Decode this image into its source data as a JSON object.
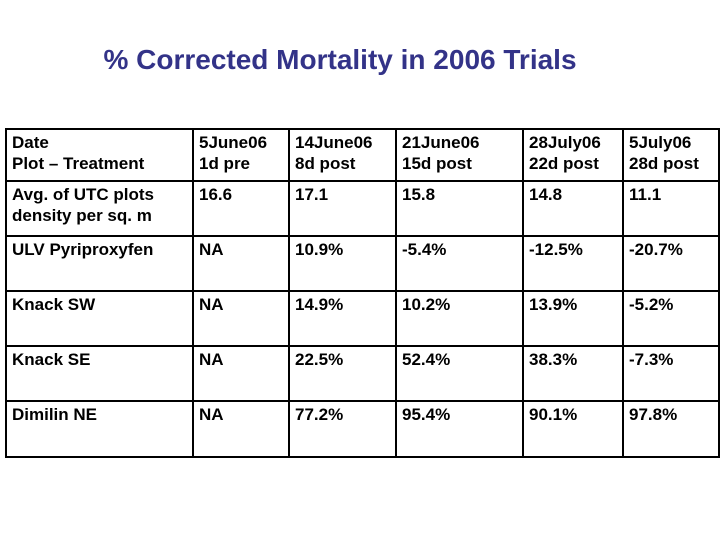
{
  "slide": {
    "title": "% Corrected Mortality in 2006 Trials",
    "title_color": "#333388"
  },
  "table": {
    "header": [
      "Date\nPlot – Treatment",
      "5June06\n1d pre",
      "14June06\n8d post",
      "21June06\n15d post",
      "28July06\n22d post",
      "5July06\n28d post"
    ],
    "rows": [
      {
        "label": "Avg. of UTC plots\ndensity per sq. m",
        "values": [
          "16.6",
          "17.1",
          "15.8",
          "14.8",
          "11.1"
        ]
      },
      {
        "label": "ULV Pyriproxyfen",
        "values": [
          "NA",
          "10.9%",
          "-5.4%",
          "-12.5%",
          "-20.7%"
        ]
      },
      {
        "label": "Knack SW",
        "values": [
          "NA",
          "14.9%",
          "10.2%",
          "13.9%",
          "-5.2%"
        ]
      },
      {
        "label": "Knack SE",
        "values": [
          "NA",
          "22.5%",
          "52.4%",
          "38.3%",
          "-7.3%"
        ]
      },
      {
        "label": "Dimilin NE",
        "values": [
          "NA",
          "77.2%",
          "95.4%",
          "90.1%",
          "97.8%"
        ]
      }
    ]
  }
}
